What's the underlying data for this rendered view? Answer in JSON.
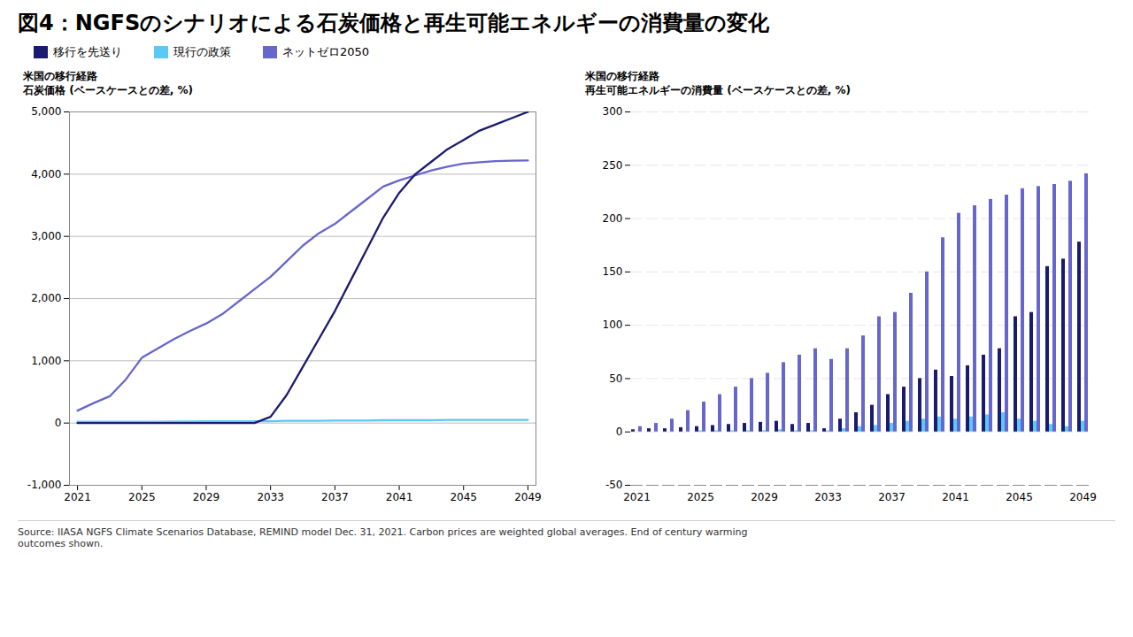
{
  "title": "図4：NGFSのシナリオによる石炭価格と再生可能エネルギーの消費量の変化",
  "source": "Source: IIASA NGFS Climate Scenarios Database, REMIND model Dec. 31, 2021. Carbon prices are weighted global averages. End of century warming\noutcomes shown.",
  "chart_data": [
    {
      "type": "line",
      "title": "米国の移行経路",
      "subtitle": "石炭価格 (ベースケースとの差, %)",
      "x": [
        2021,
        2022,
        2023,
        2024,
        2025,
        2026,
        2027,
        2028,
        2029,
        2030,
        2031,
        2032,
        2033,
        2034,
        2035,
        2036,
        2037,
        2038,
        2039,
        2040,
        2041,
        2042,
        2043,
        2044,
        2045,
        2046,
        2047,
        2048,
        2049
      ],
      "series": [
        {
          "name": "移行を先送り",
          "color": "#1a1a6e",
          "values": [
            0,
            0,
            0,
            0,
            0,
            0,
            0,
            0,
            0,
            0,
            0,
            0,
            100,
            450,
            900,
            1350,
            1800,
            2300,
            2800,
            3300,
            3700,
            4000,
            4200,
            4400,
            4550,
            4700,
            4800,
            4900,
            5000
          ]
        },
        {
          "name": "現行の政策",
          "color": "#5bc8f5",
          "values": [
            20,
            20,
            20,
            20,
            20,
            20,
            25,
            25,
            30,
            30,
            30,
            30,
            30,
            35,
            35,
            35,
            40,
            40,
            40,
            45,
            45,
            45,
            45,
            50,
            50,
            50,
            50,
            50,
            50
          ]
        },
        {
          "name": "ネットゼロ2050",
          "color": "#6666cc",
          "values": [
            200,
            320,
            430,
            700,
            1050,
            1200,
            1350,
            1480,
            1600,
            1750,
            1950,
            2150,
            2350,
            2600,
            2850,
            3050,
            3200,
            3400,
            3600,
            3800,
            3900,
            3980,
            4060,
            4120,
            4170,
            4190,
            4210,
            4215,
            4220
          ]
        }
      ],
      "xlim": [
        2020.5,
        2049.5
      ],
      "xticks": [
        2021,
        2025,
        2029,
        2033,
        2037,
        2041,
        2045,
        2049
      ],
      "ylim": [
        -1000,
        5000
      ],
      "yticks": [
        {
          "value": -1000,
          "label": "-1,000"
        },
        0,
        {
          "value": 1000,
          "label": "1,000"
        },
        {
          "value": 2000,
          "label": "2,000"
        },
        {
          "value": 3000,
          "label": "3,000"
        },
        {
          "value": 4000,
          "label": "4,000"
        },
        {
          "value": 5000,
          "label": "5,000"
        }
      ],
      "grid": true
    },
    {
      "type": "bar",
      "title": "米国の移行経路",
      "subtitle": "再生可能エネルギーの消費量 (ベースケースとの差, %)",
      "categories": [
        "2021",
        null,
        null,
        null,
        "2025",
        null,
        null,
        null,
        "2029",
        null,
        null,
        null,
        "2033",
        null,
        null,
        null,
        "2037",
        null,
        null,
        null,
        "2041",
        null,
        null,
        null,
        "2045",
        null,
        null,
        null,
        "2049"
      ],
      "series": [
        {
          "name": "移行を先送り",
          "color": "#1a1a6e",
          "values": [
            2,
            3,
            3,
            4,
            5,
            6,
            7,
            8,
            9,
            10,
            7,
            8,
            3,
            12,
            18,
            25,
            35,
            42,
            50,
            58,
            52,
            62,
            72,
            78,
            108,
            112,
            155,
            162,
            178
          ]
        },
        {
          "name": "現行の政策",
          "color": "#5bc8f5",
          "values": [
            0,
            0,
            0,
            0,
            1,
            1,
            1,
            1,
            1,
            2,
            1,
            1,
            1,
            3,
            5,
            6,
            8,
            10,
            12,
            14,
            12,
            14,
            16,
            18,
            12,
            10,
            7,
            5,
            10
          ]
        },
        {
          "name": "ネットゼロ2050",
          "color": "#6666cc",
          "values": [
            5,
            8,
            12,
            20,
            28,
            35,
            42,
            50,
            55,
            65,
            72,
            78,
            68,
            78,
            90,
            108,
            112,
            130,
            150,
            182,
            205,
            212,
            218,
            222,
            228,
            230,
            232,
            235,
            242
          ]
        }
      ],
      "ylim": [
        -50,
        300
      ],
      "yticks": [
        -50,
        0,
        50,
        100,
        150,
        200,
        250,
        300
      ],
      "grid": true
    }
  ]
}
